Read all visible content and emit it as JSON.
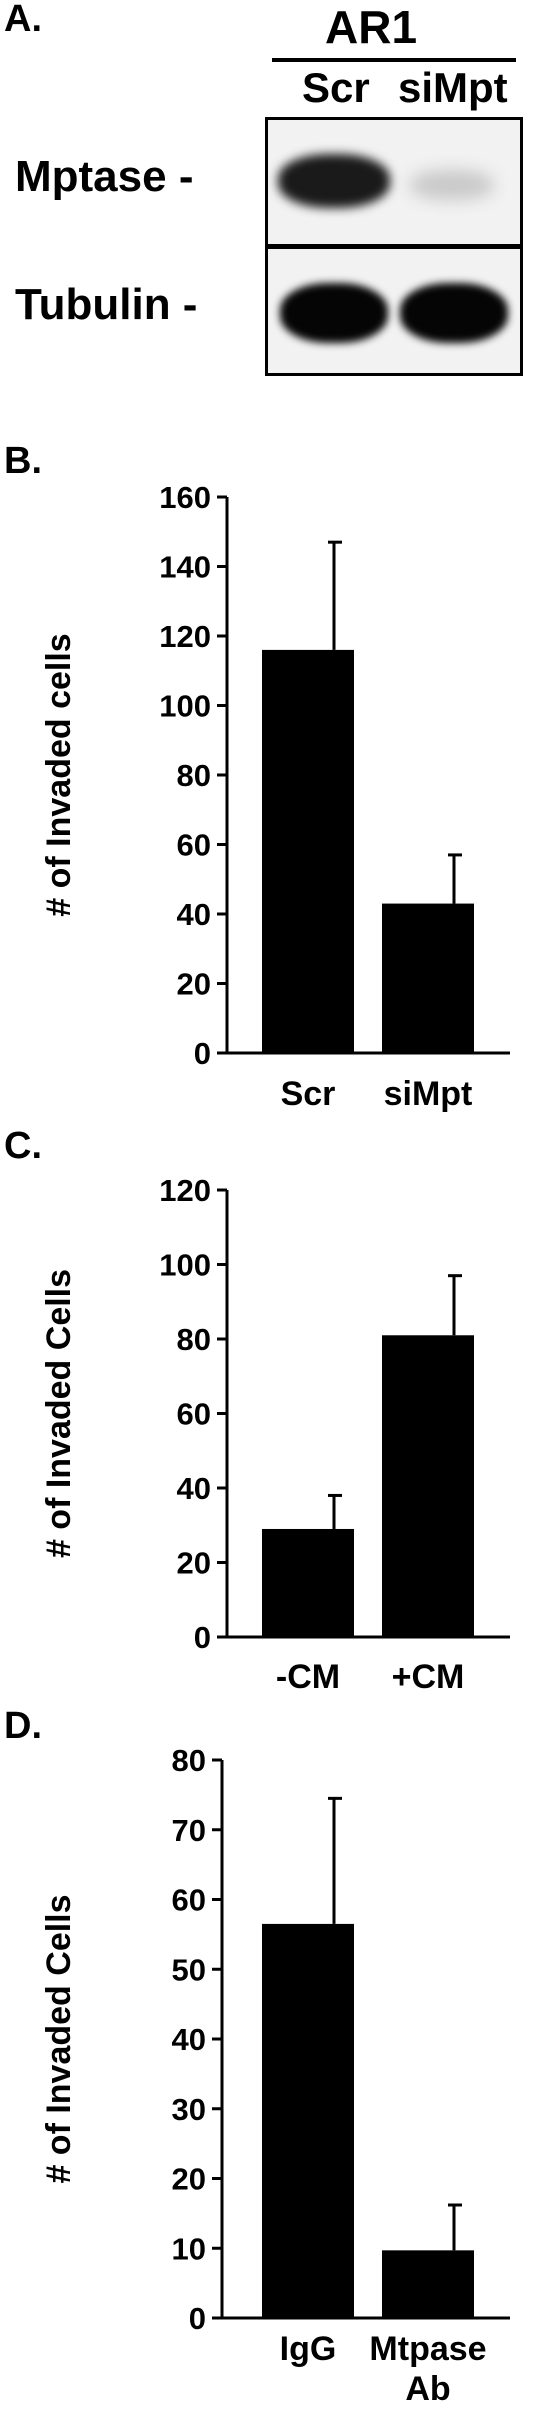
{
  "panels": {
    "a": "A.",
    "b": "B.",
    "c": "C.",
    "d": "D."
  },
  "blot": {
    "group_label": "AR1",
    "lanes": [
      "Scr",
      "siMpt"
    ],
    "rows": [
      "Mptase -",
      "Tubulin -"
    ]
  },
  "chart_data": [
    {
      "type": "bar",
      "categories": [
        "Scr",
        "siMpt"
      ],
      "values": [
        116,
        43
      ],
      "errors": [
        31,
        14
      ],
      "ylabel": "# of Invaded cells",
      "ylim": [
        0,
        160
      ],
      "ticks": [
        0,
        20,
        40,
        60,
        80,
        100,
        120,
        140,
        160
      ],
      "color": "#000000",
      "grid": false
    },
    {
      "type": "bar",
      "categories": [
        "-CM",
        "+CM"
      ],
      "values": [
        29,
        81
      ],
      "errors": [
        9,
        16
      ],
      "ylabel": "# of Invaded Cells",
      "ylim": [
        0,
        120
      ],
      "ticks": [
        0,
        20,
        40,
        60,
        80,
        100,
        120
      ],
      "color": "#000000",
      "grid": false
    },
    {
      "type": "bar",
      "categories": [
        "IgG",
        "Mtpase Ab"
      ],
      "values": [
        56.5,
        9.7
      ],
      "errors": [
        18,
        6.5
      ],
      "ylabel": "# of Invaded Cells",
      "ylim": [
        0,
        80
      ],
      "ticks": [
        0,
        10,
        20,
        30,
        40,
        50,
        60,
        70,
        80
      ],
      "color": "#000000",
      "grid": false
    }
  ]
}
